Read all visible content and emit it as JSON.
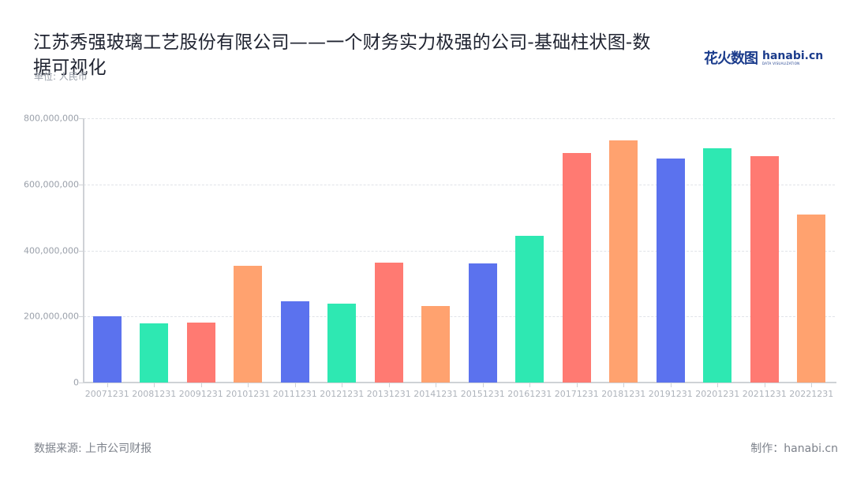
{
  "header": {
    "title": "江苏秀强玻璃工艺股份有限公司——一个财务实力极强的公司-基础柱状图-数据可视化",
    "unit": "单位: 人民币",
    "logo_cn": "花火数图",
    "logo_en": "hanabi.cn",
    "logo_sub": "DATA VISUALIZATION"
  },
  "footer": {
    "source": "数据来源: 上市公司财报",
    "credit": "制作：hanabi.cn"
  },
  "colors": [
    "#5b72ee",
    "#2ee8b2",
    "#ff7a72",
    "#ffa26f"
  ],
  "chart_data": {
    "type": "bar",
    "title": "江苏秀强玻璃工艺股份有限公司——一个财务实力极强的公司-基础柱状图-数据可视化",
    "xlabel": "",
    "ylabel": "单位: 人民币",
    "ylim": [
      0,
      800000000
    ],
    "grid": true,
    "legend": "none",
    "yticks": [
      "0",
      "200,000,000",
      "400,000,000",
      "600,000,000",
      "800,000,000"
    ],
    "categories": [
      "20071231",
      "20081231",
      "20091231",
      "20101231",
      "20111231",
      "20121231",
      "20131231",
      "20141231",
      "20151231",
      "20161231",
      "20171231",
      "20181231",
      "20191231",
      "20201231",
      "20211231",
      "20221231"
    ],
    "values": [
      200000000,
      179000000,
      181000000,
      353000000,
      246000000,
      239000000,
      363000000,
      232000000,
      361000000,
      444000000,
      695000000,
      733000000,
      678000000,
      709000000,
      685000000,
      509000000
    ]
  }
}
